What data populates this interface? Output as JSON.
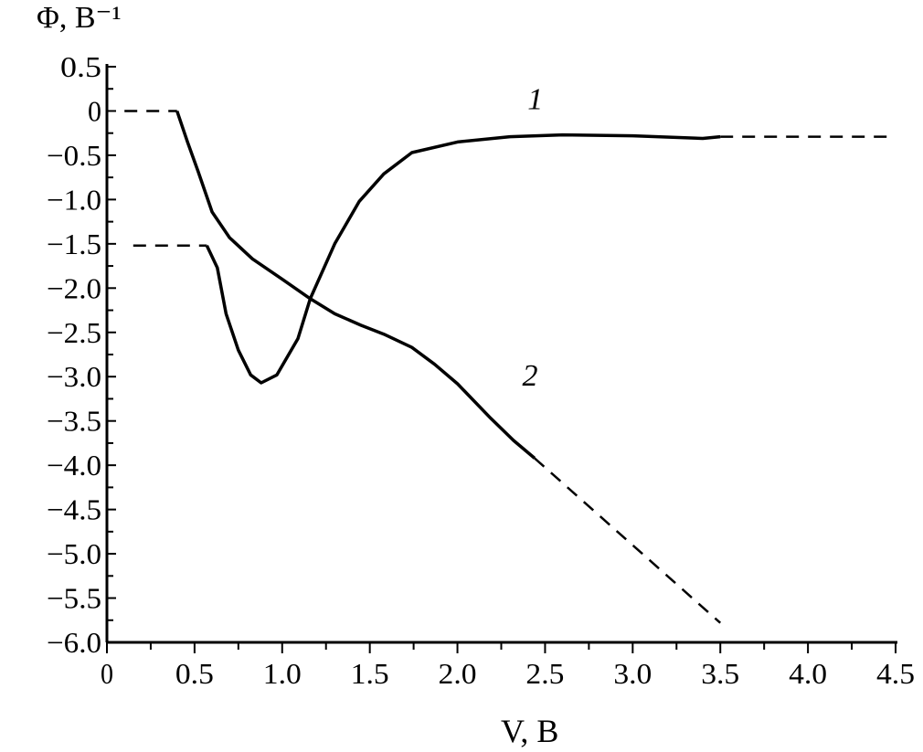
{
  "chart_data": {
    "type": "line",
    "xlabel": "V, В",
    "ylabel": "Φ, В⁻¹",
    "xlim": [
      0,
      4.5
    ],
    "ylim": [
      -6.0,
      0.5
    ],
    "x_ticks": [
      "0",
      "0.5",
      "1.0",
      "1.5",
      "2.0",
      "2.5",
      "3.0",
      "3.5",
      "4.0",
      "4.5"
    ],
    "y_ticks": [
      "0.5",
      "0",
      "−0.5",
      "−1.0",
      "−1.5",
      "−2.0",
      "−2.5",
      "−3.0",
      "−3.5",
      "−4.0",
      "−4.5",
      "−5.0",
      "−5.5",
      "−6.0"
    ],
    "grid": false,
    "series": [
      {
        "name": "1",
        "color": "#000000",
        "dashed_left": [
          [
            0.15,
            -1.52
          ],
          [
            0.57,
            -1.52
          ]
        ],
        "solid": [
          [
            0.57,
            -1.52
          ],
          [
            0.63,
            -1.77
          ],
          [
            0.68,
            -2.29
          ],
          [
            0.75,
            -2.7
          ],
          [
            0.82,
            -2.98
          ],
          [
            0.88,
            -3.07
          ],
          [
            0.97,
            -2.98
          ],
          [
            1.09,
            -2.57
          ],
          [
            1.16,
            -2.12
          ],
          [
            1.3,
            -1.5
          ],
          [
            1.44,
            -1.02
          ],
          [
            1.58,
            -0.71
          ],
          [
            1.74,
            -0.47
          ],
          [
            2.0,
            -0.35
          ],
          [
            2.3,
            -0.29
          ],
          [
            2.6,
            -0.27
          ],
          [
            3.0,
            -0.28
          ],
          [
            3.4,
            -0.31
          ],
          [
            3.5,
            -0.29
          ]
        ],
        "dashed_right": [
          [
            3.5,
            -0.29
          ],
          [
            4.45,
            -0.29
          ]
        ]
      },
      {
        "name": "2",
        "color": "#000000",
        "dashed_left": [
          [
            0.1,
            0.0
          ],
          [
            0.4,
            0.0
          ]
        ],
        "solid": [
          [
            0.4,
            0.0
          ],
          [
            0.46,
            -0.35
          ],
          [
            0.52,
            -0.68
          ],
          [
            0.6,
            -1.14
          ],
          [
            0.7,
            -1.43
          ],
          [
            0.83,
            -1.67
          ],
          [
            1.0,
            -1.9
          ],
          [
            1.16,
            -2.12
          ],
          [
            1.3,
            -2.29
          ],
          [
            1.45,
            -2.42
          ],
          [
            1.58,
            -2.52
          ],
          [
            1.74,
            -2.67
          ],
          [
            1.87,
            -2.86
          ],
          [
            2.0,
            -3.08
          ],
          [
            2.19,
            -3.47
          ],
          [
            2.32,
            -3.72
          ],
          [
            2.44,
            -3.92
          ]
        ],
        "dashed_right": [
          [
            2.44,
            -3.92
          ],
          [
            3.5,
            -5.78
          ]
        ]
      }
    ],
    "annotations": [
      {
        "text": "1",
        "x": 2.4,
        "y": 0.02
      },
      {
        "text": "2",
        "x": 2.37,
        "y": -3.1
      }
    ]
  }
}
